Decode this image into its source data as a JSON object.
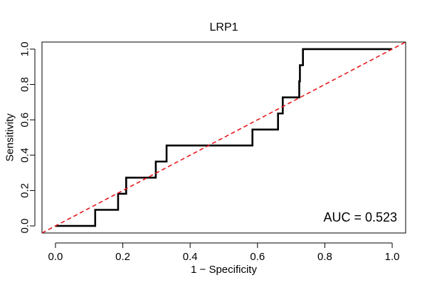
{
  "chart_data": {
    "type": "line",
    "title": "LRP1",
    "xlabel": "1 − Specificity",
    "ylabel": "Sensitivity",
    "xlim": [
      -0.04,
      1.04
    ],
    "ylim": [
      -0.04,
      1.04
    ],
    "xticks": [
      0,
      0.2,
      0.4,
      0.6,
      0.8,
      1
    ],
    "xtick_labels": [
      "0.0",
      "0.2",
      "0.4",
      "0.6",
      "0.8",
      "1.0"
    ],
    "yticks": [
      0,
      0.2,
      0.4,
      0.6,
      0.8,
      1
    ],
    "ytick_labels": [
      "0.0",
      "0.2",
      "0.4",
      "0.6",
      "0.8",
      "1.0"
    ],
    "grid": false,
    "series": [
      {
        "style": "solid",
        "color": "#000000",
        "x": [
          0.0,
          0.118,
          0.118,
          0.186,
          0.186,
          0.21,
          0.21,
          0.298,
          0.298,
          0.33,
          0.33,
          0.585,
          0.585,
          0.661,
          0.661,
          0.675,
          0.675,
          0.724,
          0.724,
          0.726,
          0.726,
          0.735,
          0.735,
          1.0
        ],
        "y": [
          0.0,
          0.0,
          0.091,
          0.091,
          0.182,
          0.182,
          0.273,
          0.273,
          0.364,
          0.364,
          0.455,
          0.455,
          0.545,
          0.545,
          0.636,
          0.636,
          0.727,
          0.727,
          0.818,
          0.818,
          0.909,
          0.909,
          1.0,
          1.0
        ]
      },
      {
        "style": "dashed",
        "color": "#e8191e",
        "x": [
          -0.04,
          1.04
        ],
        "y": [
          -0.04,
          1.04
        ]
      }
    ],
    "annotation": {
      "text": "AUC = 0.523",
      "position": "bottom-right"
    }
  }
}
